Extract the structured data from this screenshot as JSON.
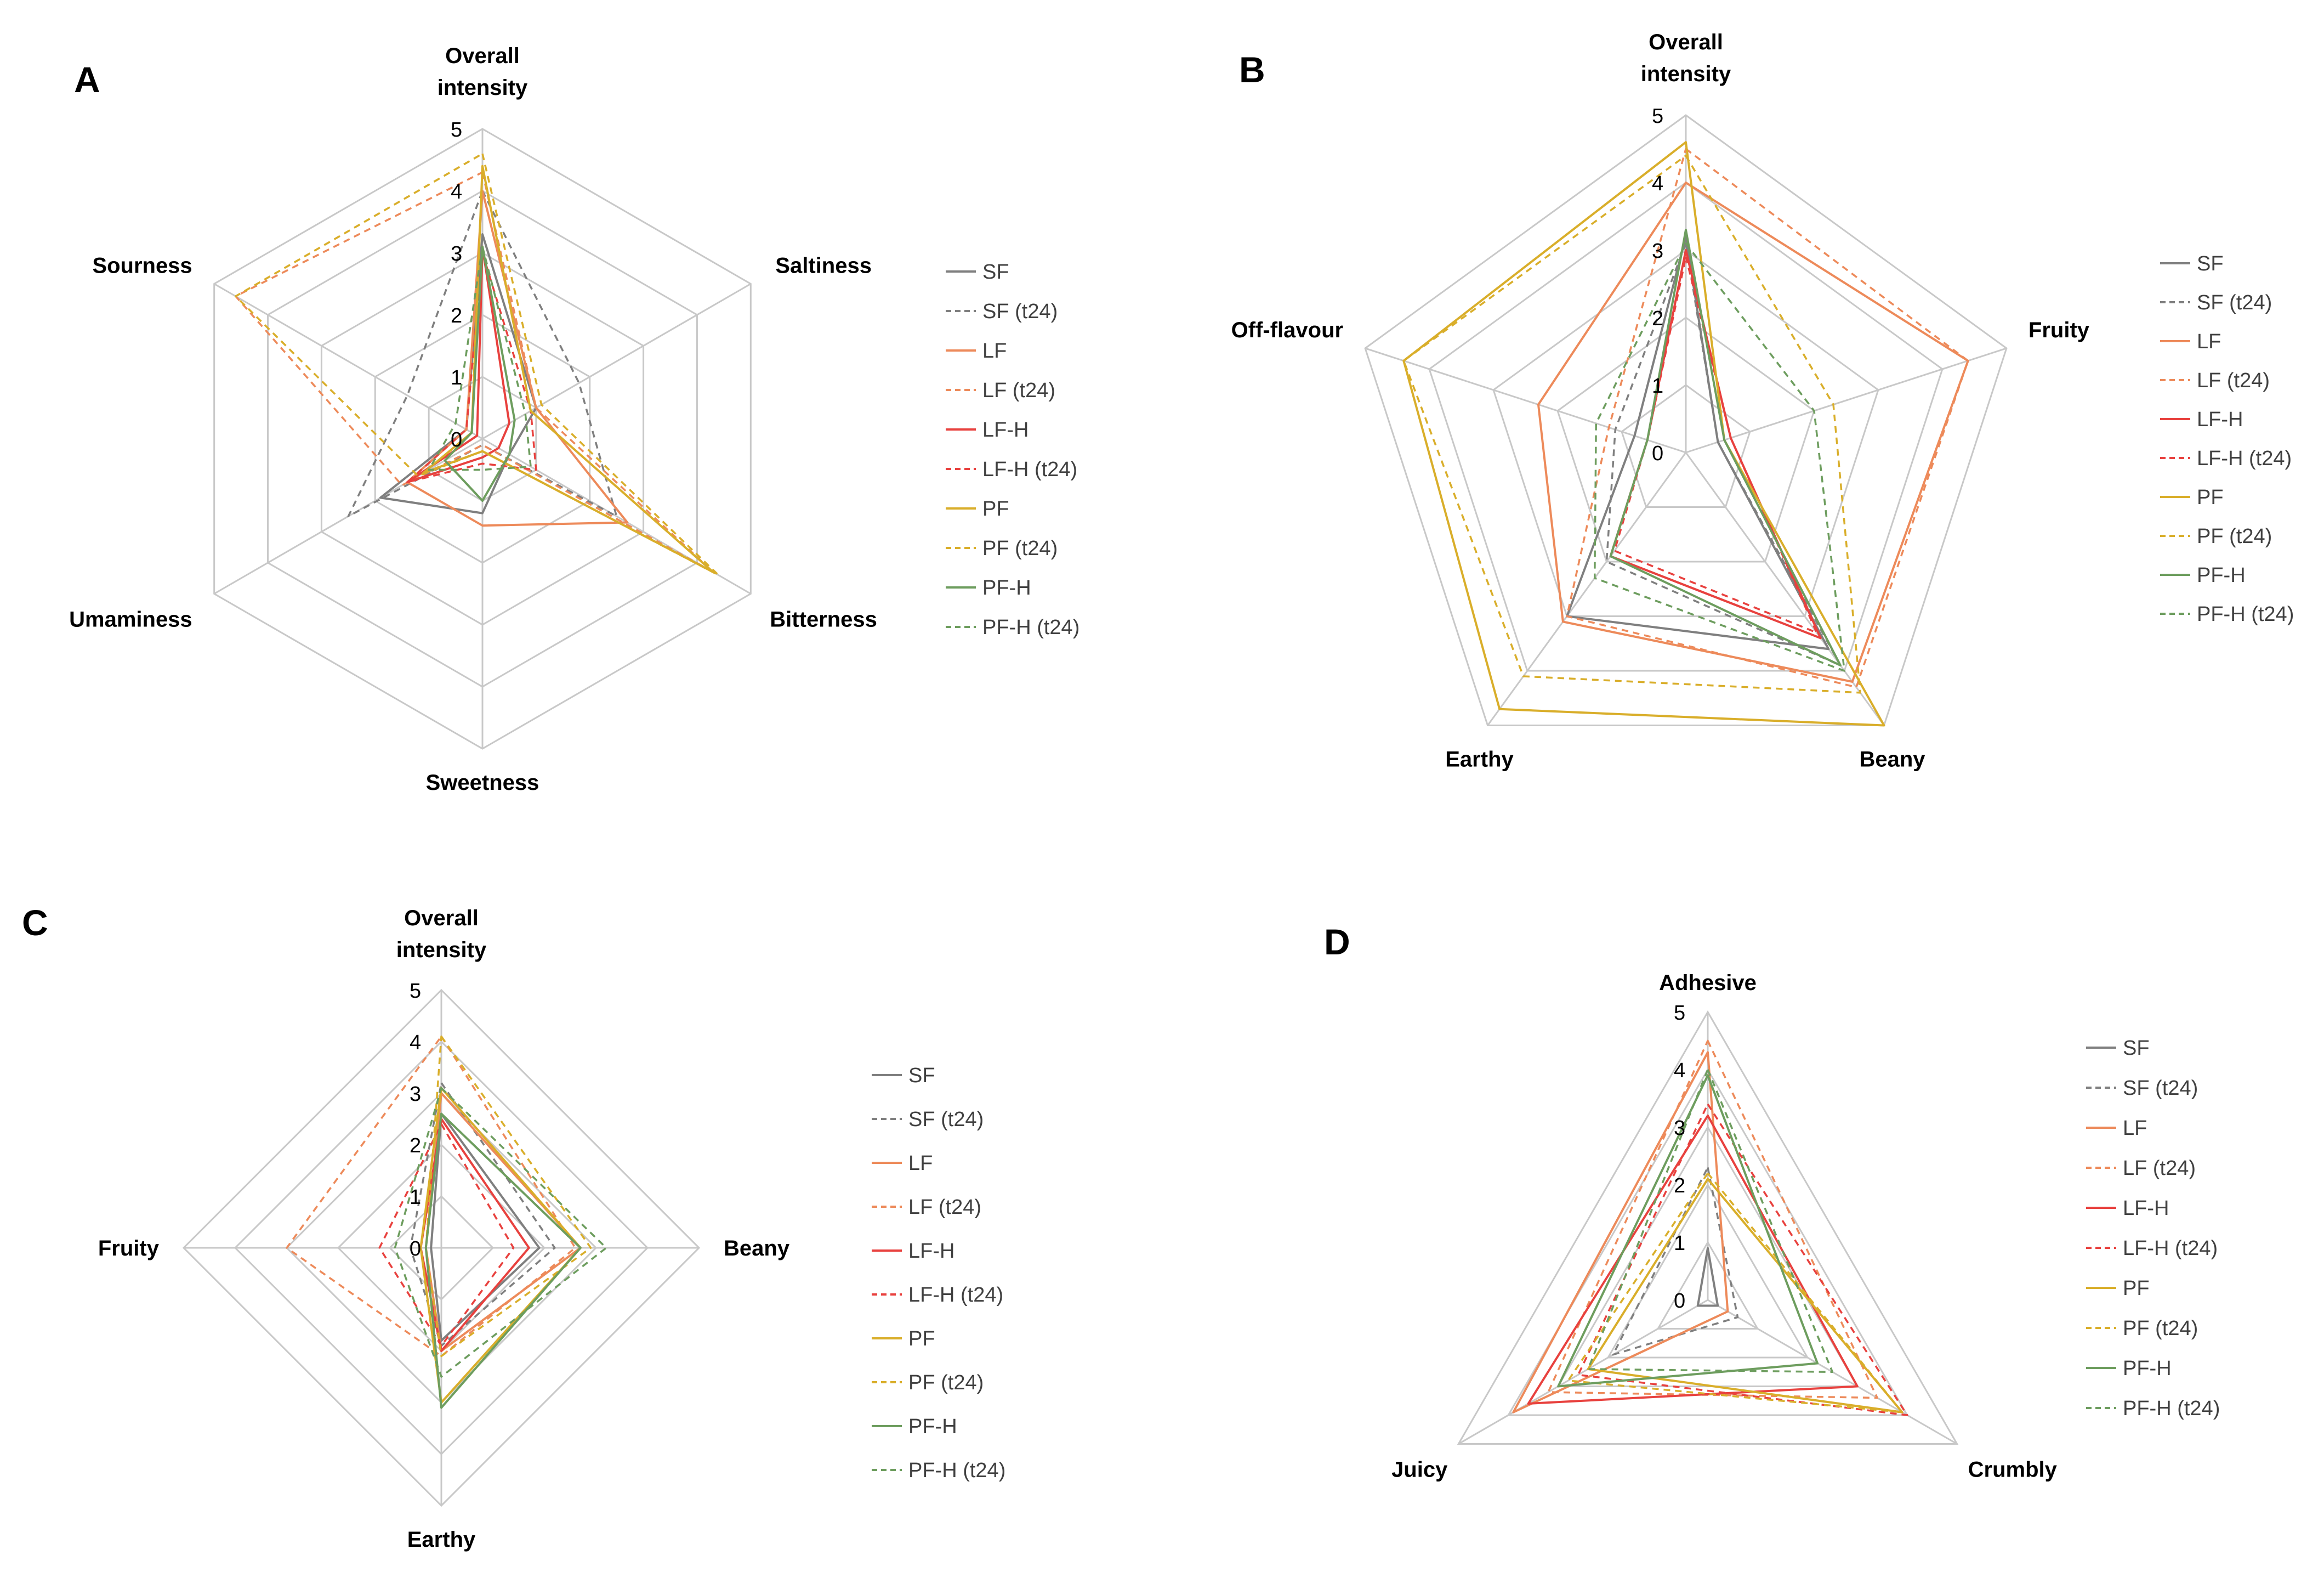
{
  "colors": {
    "grid": "#c8c8c8",
    "SF": "#7f7f7f",
    "LF": "#ed8a5a",
    "LF-H": "#e8413e",
    "PF": "#d9ae2a",
    "PF-H": "#6d9d5e"
  },
  "chart_data": [
    {
      "type": "radar",
      "panel": "A",
      "axes": [
        "Overall intensity",
        "Saltiness",
        "Bitterness",
        "Sweetness",
        "Umaminess",
        "Sourness"
      ],
      "axis_lines": [
        [
          "Overall",
          "intensity"
        ],
        [
          "Saltiness"
        ],
        [
          "Bitterness"
        ],
        [
          "Sweetness"
        ],
        [
          "Umaminess"
        ],
        [
          "Sourness"
        ]
      ],
      "range": [
        0,
        5
      ],
      "ticks": [
        "0",
        "1",
        "2",
        "3",
        "4",
        "5"
      ],
      "series": [
        {
          "name": "SF",
          "values": [
            3.3,
            1.0,
            0.5,
            1.2,
            1.9,
            0.3
          ]
        },
        {
          "name": "SF (t24)",
          "values": [
            4.0,
            1.8,
            2.5,
            0.1,
            2.5,
            1.4
          ]
        },
        {
          "name": "LF",
          "values": [
            4.0,
            1.0,
            2.7,
            1.4,
            1.4,
            0.3
          ]
        },
        {
          "name": "LF (t24)",
          "values": [
            4.3,
            1.0,
            4.3,
            0.1,
            1.5,
            4.6
          ]
        },
        {
          "name": "LF-H",
          "values": [
            3.1,
            0.5,
            0.3,
            0.3,
            1.4,
            0.1
          ]
        },
        {
          "name": "LF-H (t24)",
          "values": [
            3.0,
            0.9,
            1.0,
            0.4,
            1.4,
            0.3
          ]
        },
        {
          "name": "PF",
          "values": [
            4.4,
            0.9,
            4.3,
            0.2,
            1.1,
            0.2
          ]
        },
        {
          "name": "PF (t24)",
          "values": [
            4.6,
            1.1,
            4.4,
            0.2,
            1.2,
            4.6
          ]
        },
        {
          "name": "PF-H",
          "values": [
            3.1,
            0.6,
            0.5,
            1.0,
            0.7,
            0.2
          ]
        },
        {
          "name": "PF-H (t24)",
          "values": [
            3.1,
            0.8,
            0.9,
            0.5,
            1.0,
            0.5
          ]
        }
      ]
    },
    {
      "type": "radar",
      "panel": "B",
      "axes": [
        "Overall intensity",
        "Fruity",
        "Beany",
        "Earthy",
        "Off-flavour"
      ],
      "axis_lines": [
        [
          "Overall",
          "intensity"
        ],
        [
          "Fruity"
        ],
        [
          "Beany"
        ],
        [
          "Earthy"
        ],
        [
          "Off-flavour"
        ]
      ],
      "range": [
        0,
        5
      ],
      "ticks": [
        "0",
        "1",
        "2",
        "3",
        "4",
        "5"
      ],
      "series": [
        {
          "name": "SF",
          "values": [
            3.2,
            0.5,
            3.6,
            3.0,
            0.8
          ]
        },
        {
          "name": "SF (t24)",
          "values": [
            3.1,
            0.5,
            3.9,
            2.0,
            1.1
          ]
        },
        {
          "name": "LF",
          "values": [
            4.0,
            4.4,
            4.2,
            3.1,
            2.3
          ]
        },
        {
          "name": "LF (t24)",
          "values": [
            4.5,
            4.4,
            4.3,
            3.0,
            1.2
          ]
        },
        {
          "name": "LF-H",
          "values": [
            3.0,
            0.7,
            3.4,
            1.9,
            0.6
          ]
        },
        {
          "name": "LF-H (t24)",
          "values": [
            2.9,
            0.7,
            3.3,
            1.8,
            0.6
          ]
        },
        {
          "name": "PF",
          "values": [
            4.6,
            0.6,
            5.0,
            4.7,
            4.4
          ]
        },
        {
          "name": "PF (t24)",
          "values": [
            4.4,
            2.3,
            4.4,
            4.1,
            4.4
          ]
        },
        {
          "name": "PF-H",
          "values": [
            3.3,
            0.6,
            3.9,
            1.9,
            0.6
          ]
        },
        {
          "name": "PF-H (t24)",
          "values": [
            3.1,
            2.0,
            4.0,
            2.3,
            1.4
          ]
        }
      ]
    },
    {
      "type": "radar",
      "panel": "C",
      "axes": [
        "Overall intensity",
        "Beany",
        "Earthy",
        "Fruity"
      ],
      "axis_lines": [
        [
          "Overall",
          "intensity"
        ],
        [
          "Beany"
        ],
        [
          "Earthy"
        ],
        [
          "Fruity"
        ]
      ],
      "range": [
        0,
        5
      ],
      "ticks": [
        "0",
        "1",
        "2",
        "3",
        "4",
        "5"
      ],
      "series": [
        {
          "name": "SF",
          "values": [
            2.6,
            1.9,
            1.8,
            0.2
          ]
        },
        {
          "name": "SF (t24)",
          "values": [
            3.2,
            2.2,
            1.9,
            0.6
          ]
        },
        {
          "name": "LF",
          "values": [
            3.0,
            2.7,
            2.0,
            0.3
          ]
        },
        {
          "name": "LF (t24)",
          "values": [
            4.1,
            2.6,
            2.1,
            3.0
          ]
        },
        {
          "name": "LF-H",
          "values": [
            2.5,
            1.7,
            2.0,
            0.4
          ]
        },
        {
          "name": "LF-H (t24)",
          "values": [
            2.4,
            1.4,
            1.9,
            1.2
          ]
        },
        {
          "name": "PF",
          "values": [
            3.1,
            2.7,
            3.0,
            0.4
          ]
        },
        {
          "name": "PF (t24)",
          "values": [
            4.1,
            2.9,
            2.1,
            0.3
          ]
        },
        {
          "name": "PF-H",
          "values": [
            2.6,
            2.7,
            3.1,
            0.3
          ]
        },
        {
          "name": "PF-H (t24)",
          "values": [
            3.1,
            3.2,
            2.5,
            0.9
          ]
        }
      ]
    },
    {
      "type": "radar",
      "panel": "D",
      "axes": [
        "Adhesive",
        "Crumbly",
        "Juicy"
      ],
      "axis_lines": [
        [
          "Adhesive"
        ],
        [
          "Crumbly"
        ],
        [
          "Juicy"
        ]
      ],
      "range": [
        0,
        5
      ],
      "ticks": [
        "0",
        "1",
        "2",
        "3",
        "4",
        "5"
      ],
      "series": [
        {
          "name": "SF",
          "values": [
            0.9,
            0.2,
            0.2
          ]
        },
        {
          "name": "SF (t24)",
          "values": [
            2.3,
            0.6,
            1.9
          ]
        },
        {
          "name": "LF",
          "values": [
            4.3,
            0.4,
            3.9
          ]
        },
        {
          "name": "LF (t24)",
          "values": [
            4.5,
            3.4,
            3.2
          ]
        },
        {
          "name": "LF-H",
          "values": [
            3.2,
            3.0,
            3.6
          ]
        },
        {
          "name": "LF-H (t24)",
          "values": [
            3.4,
            4.0,
            2.6
          ]
        },
        {
          "name": "PF",
          "values": [
            2.1,
            3.9,
            2.4
          ]
        },
        {
          "name": "PF (t24)",
          "values": [
            2.2,
            3.9,
            2.8
          ]
        },
        {
          "name": "PF-H",
          "values": [
            3.9,
            2.2,
            3.0
          ]
        },
        {
          "name": "PF-H (t24)",
          "values": [
            4.0,
            2.5,
            2.4
          ]
        }
      ]
    }
  ]
}
